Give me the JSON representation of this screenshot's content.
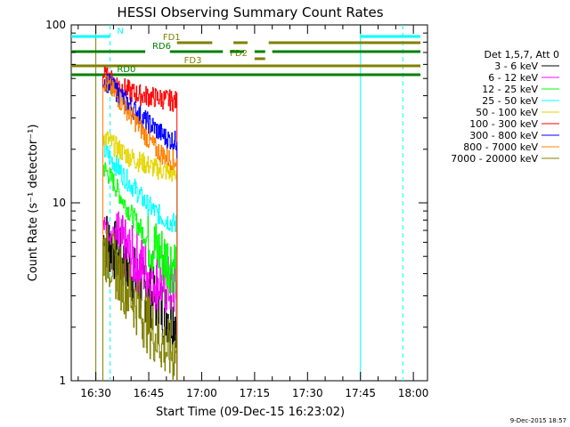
{
  "chart_data": {
    "type": "line",
    "title": "HESSI Observing Summary Count Rates",
    "xlabel": "Start Time (09-Dec-15 16:23:02)",
    "ylabel": "Count Rate (s⁻¹ detector⁻¹)",
    "yscale": "log",
    "ylim": [
      1,
      100
    ],
    "xlim": [
      "16:23:02",
      "18:04:00"
    ],
    "grid": false,
    "x_ticks": [
      "16:30",
      "16:45",
      "17:00",
      "17:15",
      "17:30",
      "17:45",
      "18:00"
    ],
    "y_ticks": [
      "1",
      "10",
      "100"
    ],
    "legend_title": "Det 1,5,7, Att 0",
    "legend_position": "right",
    "timestamp": "9-Dec-2015 18:57",
    "series": [
      {
        "name": "3 - 6 keV",
        "color": "#000000",
        "x": [
          "16:32",
          "16:35",
          "16:38",
          "16:41",
          "16:44",
          "16:47",
          "16:50",
          "16:53"
        ],
        "y": [
          6.5,
          5.5,
          4.5,
          3.8,
          3.2,
          2.8,
          2.4,
          2.3
        ]
      },
      {
        "name": "6 - 12 keV",
        "color": "#ff00ff",
        "x": [
          "16:32",
          "16:35",
          "16:38",
          "16:41",
          "16:44",
          "16:47",
          "16:50",
          "16:53"
        ],
        "y": [
          7.5,
          6.5,
          5.5,
          4.8,
          4.2,
          3.7,
          3.4,
          3.3
        ]
      },
      {
        "name": "12 - 25 keV",
        "color": "#00ff00",
        "x": [
          "16:32",
          "16:35",
          "16:38",
          "16:41",
          "16:44",
          "16:47",
          "16:50",
          "16:53"
        ],
        "y": [
          16,
          13,
          10,
          8,
          6.5,
          5.5,
          4.8,
          4.5
        ]
      },
      {
        "name": "25 - 50 keV",
        "color": "#00ffff",
        "x": [
          "16:32",
          "16:35",
          "16:38",
          "16:41",
          "16:44",
          "16:47",
          "16:50",
          "16:53"
        ],
        "y": [
          20,
          17,
          14,
          12,
          10,
          8.8,
          8,
          7.5
        ]
      },
      {
        "name": "50 - 100 keV",
        "color": "#e6d600",
        "x": [
          "16:32",
          "16:35",
          "16:38",
          "16:41",
          "16:44",
          "16:47",
          "16:50",
          "16:53"
        ],
        "y": [
          24,
          21,
          19,
          17.5,
          16.5,
          15.5,
          15,
          14.5
        ]
      },
      {
        "name": "100 - 300 keV",
        "color": "#ff0000",
        "x": [
          "16:32",
          "16:35",
          "16:38",
          "16:41",
          "16:44",
          "16:47",
          "16:50",
          "16:53"
        ],
        "y": [
          52,
          48,
          44,
          41,
          40,
          39,
          38,
          37
        ]
      },
      {
        "name": "300 - 800 keV",
        "color": "#0000ff",
        "x": [
          "16:32",
          "16:35",
          "16:38",
          "16:41",
          "16:44",
          "16:47",
          "16:50",
          "16:53"
        ],
        "y": [
          50,
          44,
          38,
          33,
          29,
          26,
          23,
          22
        ]
      },
      {
        "name": "800 - 7000 keV",
        "color": "#ff8000",
        "x": [
          "16:32",
          "16:35",
          "16:38",
          "16:41",
          "16:44",
          "16:47",
          "16:50",
          "16:53"
        ],
        "y": [
          49,
          42,
          35,
          29,
          24,
          20,
          18,
          17
        ]
      },
      {
        "name": "7000 - 20000 keV",
        "color": "#808000",
        "x": [
          "16:32",
          "16:35",
          "16:38",
          "16:41",
          "16:44",
          "16:47",
          "16:50",
          "16:53"
        ],
        "y": [
          5.5,
          4.5,
          3.5,
          2.8,
          2.2,
          1.8,
          1.5,
          1.4
        ]
      }
    ],
    "flags": [
      {
        "label": "N",
        "color": "#00ffff",
        "segments": [
          [
            "16:23:02",
            "16:34"
          ],
          [
            "17:45",
            "18:02"
          ]
        ],
        "label_at": "16:36"
      },
      {
        "label": "FD1",
        "color": "#808000",
        "segments": [
          [
            "16:53",
            "17:03"
          ],
          [
            "17:09",
            "17:13"
          ],
          [
            "17:19",
            "18:02"
          ]
        ],
        "label_at": "16:49"
      },
      {
        "label": "FD2",
        "color": "#808000",
        "segments": [
          [
            "17:15",
            "17:18"
          ]
        ],
        "label_at": "17:08"
      },
      {
        "label": "FD3",
        "color": "#808000",
        "segments": [
          [
            "16:23:02",
            "18:02"
          ]
        ],
        "label_at": "16:55"
      },
      {
        "label": "RD0",
        "color": "#008000",
        "segments": [
          [
            "16:23:02",
            "18:02"
          ]
        ],
        "label_at": "16:36"
      },
      {
        "label": "RD6",
        "color": "#008000",
        "segments": [
          [
            "16:23:02",
            "16:44"
          ],
          [
            "16:51",
            "17:06"
          ],
          [
            "17:08",
            "17:12"
          ],
          [
            "17:15",
            "17:18"
          ],
          [
            "17:20",
            "18:02"
          ]
        ],
        "label_at": "16:46"
      }
    ],
    "vertical_lines": [
      {
        "time": "16:34",
        "color": "#00ffff",
        "style": "dashed"
      },
      {
        "time": "17:45",
        "color": "#00ffff",
        "style": "solid"
      },
      {
        "time": "17:57",
        "color": "#00ffff",
        "style": "dashed"
      },
      {
        "time": "16:30",
        "color": "#808000",
        "style": "solid"
      }
    ]
  }
}
